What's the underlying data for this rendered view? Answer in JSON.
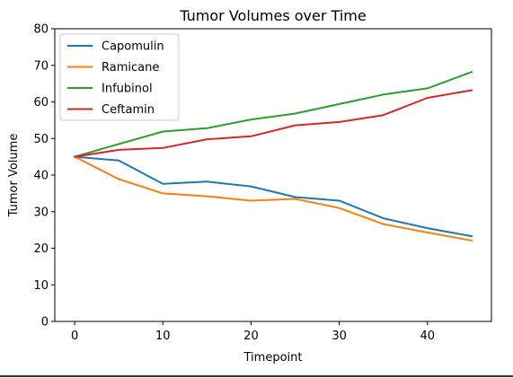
{
  "chart_data": {
    "type": "line",
    "title": "Tumor Volumes over Time",
    "xlabel": "Timepoint",
    "ylabel": "Tumor Volume",
    "xlim": [
      -2.25,
      47.25
    ],
    "ylim": [
      0,
      80
    ],
    "xticks": [
      0,
      10,
      20,
      30,
      40
    ],
    "yticks": [
      0,
      10,
      20,
      30,
      40,
      50,
      60,
      70,
      80
    ],
    "x": [
      0,
      5,
      10,
      15,
      20,
      25,
      30,
      35,
      40,
      45
    ],
    "series": [
      {
        "name": "Capomulin",
        "color": "#1f77b4",
        "values": [
          45.0,
          44.0,
          37.6,
          38.2,
          36.9,
          34.0,
          33.0,
          28.2,
          25.5,
          23.3
        ]
      },
      {
        "name": "Ramicane",
        "color": "#ff7f0e",
        "values": [
          45.0,
          38.9,
          35.0,
          34.2,
          33.0,
          33.5,
          31.0,
          26.6,
          24.3,
          22.1
        ]
      },
      {
        "name": "Infubinol",
        "color": "#2ca02c",
        "values": [
          45.0,
          48.5,
          51.9,
          52.8,
          55.2,
          56.8,
          59.4,
          62.0,
          63.7,
          68.2
        ]
      },
      {
        "name": "Ceftamin",
        "color": "#d62728",
        "values": [
          45.0,
          46.9,
          47.4,
          49.8,
          50.6,
          53.6,
          54.5,
          56.4,
          61.1,
          63.2
        ]
      }
    ],
    "legend_position": "top-left",
    "grid": false
  }
}
